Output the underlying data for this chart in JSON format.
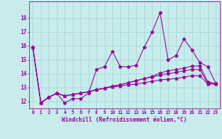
{
  "x": [
    0,
    1,
    2,
    3,
    4,
    5,
    6,
    7,
    8,
    9,
    10,
    11,
    12,
    13,
    14,
    15,
    16,
    17,
    18,
    19,
    20,
    21,
    22,
    23
  ],
  "series1": [
    15.9,
    11.9,
    12.3,
    12.6,
    11.9,
    12.2,
    12.2,
    12.6,
    14.3,
    14.5,
    15.6,
    14.5,
    14.5,
    14.6,
    15.9,
    17.0,
    18.4,
    15.0,
    15.3,
    16.5,
    15.7,
    14.8,
    14.5,
    13.3
  ],
  "series2": [
    15.9,
    11.9,
    12.3,
    12.6,
    12.4,
    12.5,
    12.6,
    12.7,
    12.85,
    12.95,
    13.05,
    13.1,
    13.2,
    13.25,
    13.35,
    13.45,
    13.55,
    13.6,
    13.65,
    13.75,
    13.85,
    13.85,
    13.25,
    13.25
  ],
  "series3": [
    15.9,
    11.9,
    12.3,
    12.6,
    12.4,
    12.5,
    12.6,
    12.7,
    12.85,
    12.95,
    13.1,
    13.2,
    13.35,
    13.5,
    13.65,
    13.75,
    13.9,
    14.0,
    14.1,
    14.2,
    14.3,
    14.3,
    13.3,
    13.3
  ],
  "series4": [
    15.9,
    11.9,
    12.3,
    12.6,
    12.4,
    12.5,
    12.6,
    12.7,
    12.85,
    12.95,
    13.1,
    13.2,
    13.35,
    13.5,
    13.65,
    13.8,
    14.05,
    14.2,
    14.3,
    14.4,
    14.55,
    14.55,
    13.4,
    13.3
  ],
  "line_color": "#990099",
  "bg_color": "#c8ecec",
  "grid_color": "#aad8d8",
  "xlabel": "Windchill (Refroidissement éolien,°C)",
  "ylim": [
    11.5,
    19.2
  ],
  "xlim": [
    -0.5,
    23.5
  ],
  "yticks": [
    12,
    13,
    14,
    15,
    16,
    17,
    18
  ],
  "xticks": [
    0,
    1,
    2,
    3,
    4,
    5,
    6,
    7,
    8,
    9,
    10,
    11,
    12,
    13,
    14,
    15,
    16,
    17,
    18,
    19,
    20,
    21,
    22,
    23
  ]
}
